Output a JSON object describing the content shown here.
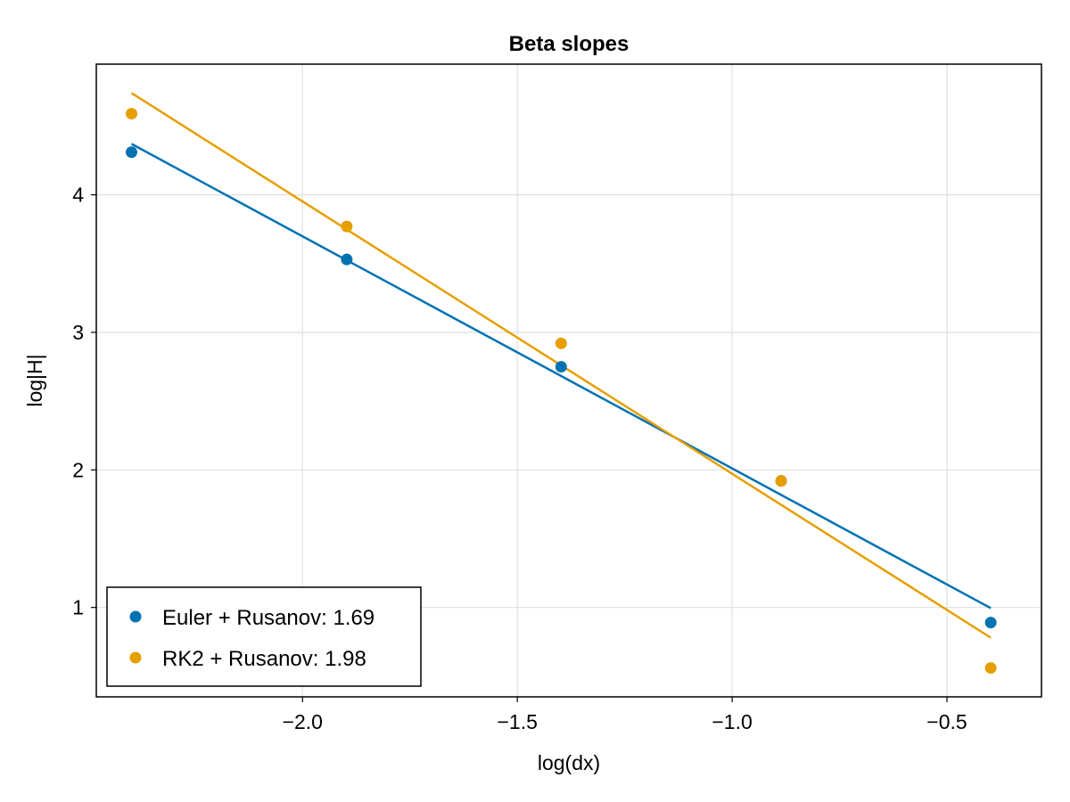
{
  "chart_data": {
    "type": "scatter",
    "title": "Beta slopes",
    "xlabel": "log(dx)",
    "ylabel": "log|H|",
    "xlim": [
      -2.48,
      -0.28
    ],
    "ylim": [
      0.35,
      4.95
    ],
    "xticks": [
      -2.0,
      -1.5,
      -1.0,
      -0.5
    ],
    "xtick_labels": [
      "−2.0",
      "−1.5",
      "−1.0",
      "−0.5"
    ],
    "yticks": [
      1,
      2,
      3,
      4
    ],
    "ytick_labels": [
      "1",
      "2",
      "3",
      "4"
    ],
    "grid": true,
    "legend_position": "bottom-left",
    "series": [
      {
        "name": "Euler + Rusanov: 1.69",
        "color": "#0072B2",
        "x": [
          -2.398,
          -1.897,
          -1.398,
          -0.886,
          -0.398
        ],
        "y": [
          4.31,
          3.53,
          2.75,
          1.92,
          0.89
        ],
        "fit": {
          "x": [
            -2.398,
            -0.398
          ],
          "y": [
            4.37,
            0.995
          ]
        }
      },
      {
        "name": "RK2 + Rusanov: 1.98",
        "color": "#E69F00",
        "x": [
          -2.398,
          -1.897,
          -1.398,
          -0.886,
          -0.398
        ],
        "y": [
          4.59,
          3.77,
          2.92,
          1.92,
          0.56
        ],
        "fit": {
          "x": [
            -2.398,
            -0.398
          ],
          "y": [
            4.74,
            0.78
          ]
        }
      }
    ]
  }
}
